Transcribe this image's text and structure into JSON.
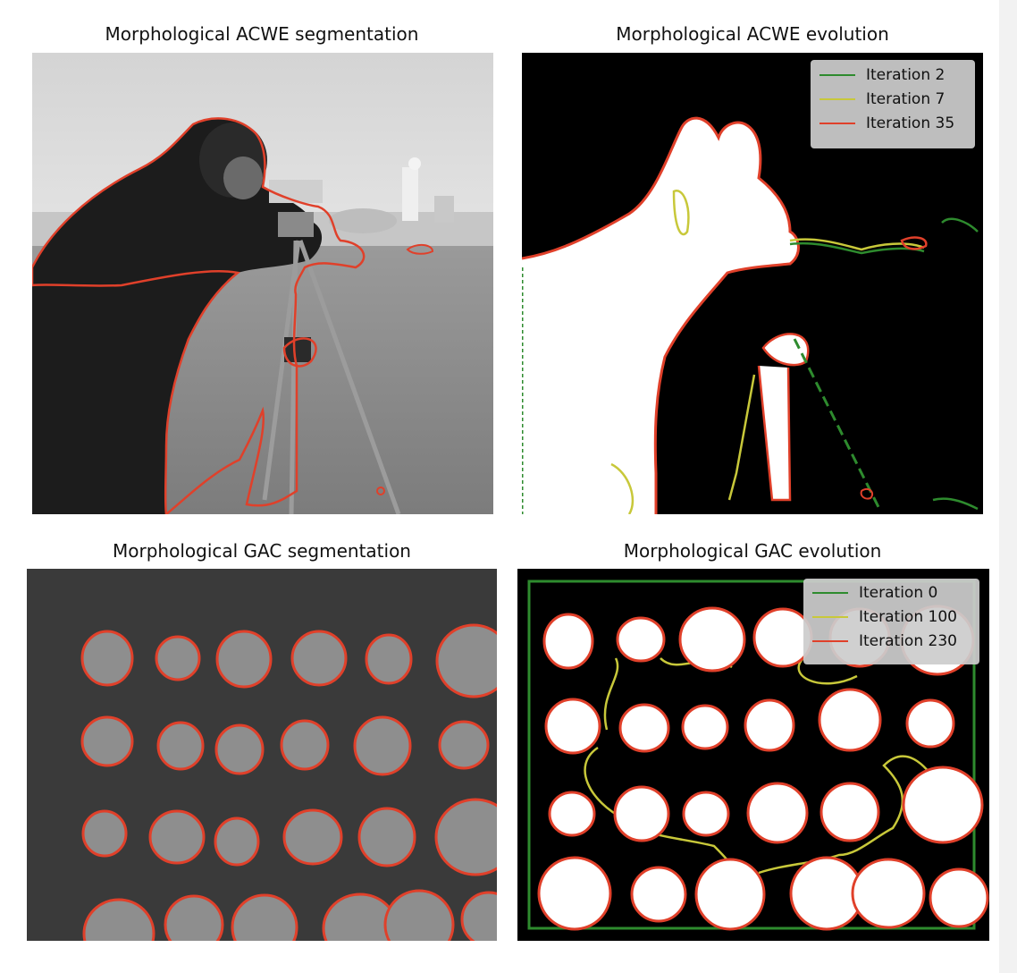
{
  "panels": {
    "acwe_segmentation": {
      "title": "Morphological ACWE segmentation"
    },
    "acwe_evolution": {
      "title": "Morphological ACWE evolution",
      "legend": [
        {
          "label": "Iteration 2",
          "color": "#2e8b2e"
        },
        {
          "label": "Iteration 7",
          "color": "#c8c83a"
        },
        {
          "label": "Iteration 35",
          "color": "#e0402a"
        }
      ]
    },
    "gac_segmentation": {
      "title": "Morphological GAC segmentation"
    },
    "gac_evolution": {
      "title": "Morphological GAC evolution",
      "legend": [
        {
          "label": "Iteration 0",
          "color": "#2e8b2e"
        },
        {
          "label": "Iteration 100",
          "color": "#c8c83a"
        },
        {
          "label": "Iteration 230",
          "color": "#e0402a"
        }
      ]
    }
  },
  "colors": {
    "contour": "#e0402a",
    "iter_early": "#2e8b2e",
    "iter_mid": "#c8c83a",
    "mask_foreground": "#ffffff",
    "mask_background": "#000000"
  }
}
